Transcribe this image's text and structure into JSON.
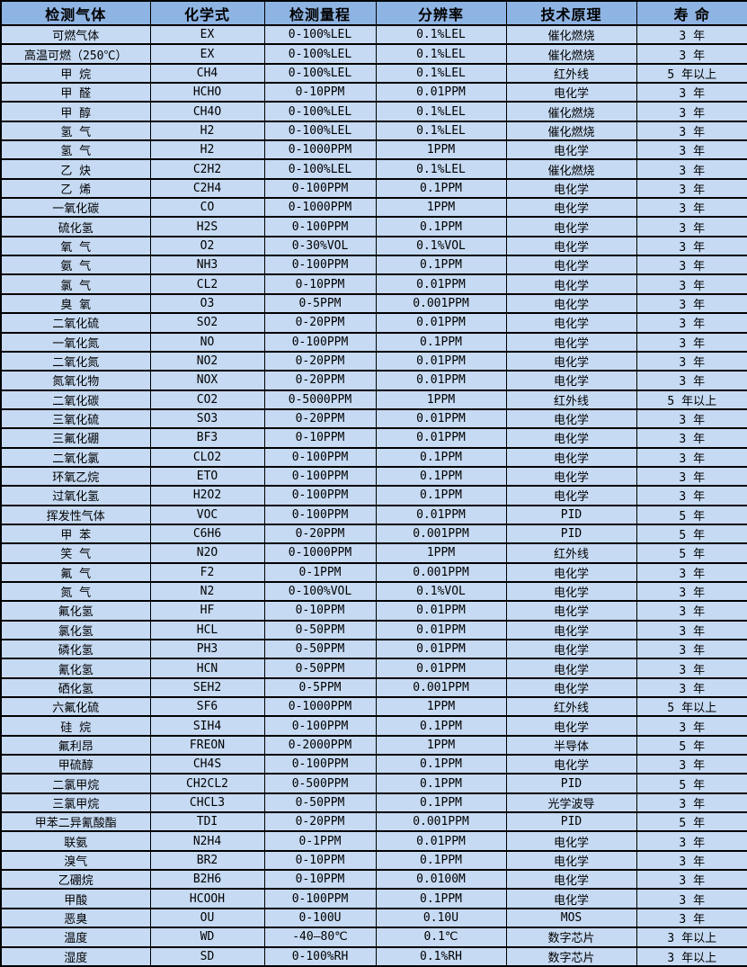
{
  "colors": {
    "header_bg": "#8EB4E3",
    "row_bg": "#C6DAF3",
    "border": "#000000",
    "text": "#000000"
  },
  "table": {
    "headers": [
      "检测气体",
      "化学式",
      "检测量程",
      "分辨率",
      "技术原理",
      "寿 命"
    ],
    "rows": [
      [
        "可燃气体",
        "EX",
        "0-100%LEL",
        "0.1%LEL",
        "催化燃烧",
        "3 年"
      ],
      [
        "高温可燃（250℃）",
        "EX",
        "0-100%LEL",
        "0.1%LEL",
        "催化燃烧",
        "3 年"
      ],
      [
        "甲 烷",
        "CH4",
        "0-100%LEL",
        "0.1%LEL",
        "红外线",
        "5 年以上"
      ],
      [
        "甲 醛",
        "HCHO",
        "0-10PPM",
        "0.01PPM",
        "电化学",
        "3 年"
      ],
      [
        "甲 醇",
        "CH4O",
        "0-100%LEL",
        "0.1%LEL",
        "催化燃烧",
        "3 年"
      ],
      [
        "氢 气",
        "H2",
        "0-100%LEL",
        "0.1%LEL",
        "催化燃烧",
        "3 年"
      ],
      [
        "氢 气",
        "H2",
        "0-1000PPM",
        "1PPM",
        "电化学",
        "3 年"
      ],
      [
        "乙 炔",
        "C2H2",
        "0-100%LEL",
        "0.1%LEL",
        "催化燃烧",
        "3 年"
      ],
      [
        "乙 烯",
        "C2H4",
        "0-100PPM",
        "0.1PPM",
        "电化学",
        "3 年"
      ],
      [
        "一氧化碳",
        "CO",
        "0-1000PPM",
        "1PPM",
        "电化学",
        "3 年"
      ],
      [
        "硫化氢",
        "H2S",
        "0-100PPM",
        "0.1PPM",
        "电化学",
        "3 年"
      ],
      [
        "氧 气",
        "O2",
        "0-30%VOL",
        "0.1%VOL",
        "电化学",
        "3 年"
      ],
      [
        "氨 气",
        "NH3",
        "0-100PPM",
        "0.1PPM",
        "电化学",
        "3 年"
      ],
      [
        "氯 气",
        "CL2",
        "0-10PPM",
        "0.01PPM",
        "电化学",
        "3 年"
      ],
      [
        "臭 氧",
        "O3",
        "0-5PPM",
        "0.001PPM",
        "电化学",
        "3 年"
      ],
      [
        "二氧化硫",
        "SO2",
        "0-20PPM",
        "0.01PPM",
        "电化学",
        "3 年"
      ],
      [
        "一氧化氮",
        "NO",
        "0-100PPM",
        "0.1PPM",
        "电化学",
        "3 年"
      ],
      [
        "二氧化氮",
        "NO2",
        "0-20PPM",
        "0.01PPM",
        "电化学",
        "3 年"
      ],
      [
        "氮氧化物",
        "NOX",
        "0-20PPM",
        "0.01PPM",
        "电化学",
        "3 年"
      ],
      [
        "二氧化碳",
        "CO2",
        "0-5000PPM",
        "1PPM",
        "红外线",
        "5 年以上"
      ],
      [
        "三氧化硫",
        "SO3",
        "0-20PPM",
        "0.01PPM",
        "电化学",
        "3 年"
      ],
      [
        "三氟化硼",
        "BF3",
        "0-10PPM",
        "0.01PPM",
        "电化学",
        "3 年"
      ],
      [
        "二氧化氯",
        "CLO2",
        "0-100PPM",
        "0.1PPM",
        "电化学",
        "3 年"
      ],
      [
        "环氧乙烷",
        "ETO",
        "0-100PPM",
        "0.1PPM",
        "电化学",
        "3 年"
      ],
      [
        "过氧化氢",
        "H2O2",
        "0-100PPM",
        "0.1PPM",
        "电化学",
        "3 年"
      ],
      [
        "挥发性气体",
        "VOC",
        "0-100PPM",
        "0.01PPM",
        "PID",
        "5 年"
      ],
      [
        "甲 苯",
        "C6H6",
        "0-20PPM",
        "0.001PPM",
        "PID",
        "5 年"
      ],
      [
        "笑 气",
        "N2O",
        "0-1000PPM",
        "1PPM",
        "红外线",
        "5 年"
      ],
      [
        "氟 气",
        "F2",
        "0-1PPM",
        "0.001PPM",
        "电化学",
        "3 年"
      ],
      [
        "氮 气",
        "N2",
        "0-100%VOL",
        "0.1%VOL",
        "电化学",
        "3 年"
      ],
      [
        "氟化氢",
        "HF",
        "0-10PPM",
        "0.01PPM",
        "电化学",
        "3 年"
      ],
      [
        "氯化氢",
        "HCL",
        "0-50PPM",
        "0.01PPM",
        "电化学",
        "3 年"
      ],
      [
        "磷化氢",
        "PH3",
        "0-50PPM",
        "0.01PPM",
        "电化学",
        "3 年"
      ],
      [
        "氰化氢",
        "HCN",
        "0-50PPM",
        "0.01PPM",
        "电化学",
        "3 年"
      ],
      [
        "硒化氢",
        "SEH2",
        "0-5PPM",
        "0.001PPM",
        "电化学",
        "3 年"
      ],
      [
        "六氟化硫",
        "SF6",
        "0-1000PPM",
        "1PPM",
        "红外线",
        "5 年以上"
      ],
      [
        "硅 烷",
        "SIH4",
        "0-100PPM",
        "0.1PPM",
        "电化学",
        "3 年"
      ],
      [
        "氟利昂",
        "FREON",
        "0-2000PPM",
        "1PPM",
        "半导体",
        "5 年"
      ],
      [
        "甲硫醇",
        "CH4S",
        "0-100PPM",
        "0.1PPM",
        "电化学",
        "3 年"
      ],
      [
        "二氯甲烷",
        "CH2CL2",
        "0-500PPM",
        "0.1PPM",
        "PID",
        "5 年"
      ],
      [
        "三氯甲烷",
        "CHCL3",
        "0-50PPM",
        "0.1PPM",
        "光学波导",
        "3 年"
      ],
      [
        "甲苯二异氰酸酯",
        "TDI",
        "0-20PPM",
        "0.001PPM",
        "PID",
        "5 年"
      ],
      [
        "联氨",
        "N2H4",
        "0-1PPM",
        "0.01PPM",
        "电化学",
        "3 年"
      ],
      [
        "溴气",
        "BR2",
        "0-10PPM",
        "0.1PPM",
        "电化学",
        "3 年"
      ],
      [
        "乙硼烷",
        "B2H6",
        "0-10PPM",
        "0.0100M",
        "电化学",
        "3 年"
      ],
      [
        "甲酸",
        "HCOOH",
        "0-100PPM",
        "0.1PPM",
        "电化学",
        "3 年"
      ],
      [
        "恶臭",
        "OU",
        "0-100U",
        "0.10U",
        "MOS",
        "3 年"
      ],
      [
        "温度",
        "WD",
        "-40—80℃",
        "0.1℃",
        "数字芯片",
        "3 年以上"
      ],
      [
        "湿度",
        "SD",
        "0-100%RH",
        "0.1%RH",
        "数字芯片",
        "3 年以上"
      ]
    ]
  }
}
